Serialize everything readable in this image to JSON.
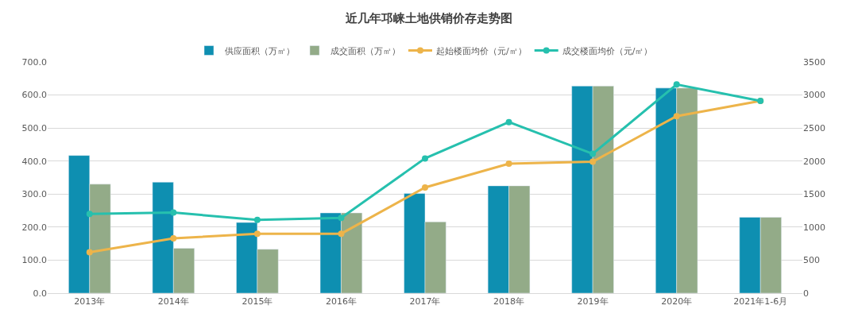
{
  "chart_data": {
    "type": "bar",
    "title": "近几年邛崃土地供销价存走势图",
    "categories": [
      "2013年",
      "2014年",
      "2015年",
      "2016年",
      "2017年",
      "2018年",
      "2019年",
      "2020年",
      "2021年1-6月"
    ],
    "series": [
      {
        "name": "供应面积（万㎡）",
        "color": "#0e8fb1",
        "values": [
          417,
          336,
          214,
          243,
          302,
          325,
          627,
          621,
          230
        ]
      },
      {
        "name": "成交面积（万㎡）",
        "color": "#93ab88",
        "values": [
          330,
          136,
          133,
          243,
          216,
          325,
          627,
          621,
          230
        ]
      },
      {
        "name": "起始楼面均价（元/㎡）",
        "type": "line",
        "axis": "y2",
        "color": "#edb44a",
        "values": [
          620,
          830,
          900,
          900,
          1600,
          1960,
          1990,
          2680,
          2910
        ]
      },
      {
        "name": "成交楼面均价（元/㎡）",
        "type": "line",
        "axis": "y2",
        "color": "#26c0ae",
        "values": [
          1200,
          1220,
          1110,
          1140,
          2040,
          2590,
          2110,
          3160,
          2910
        ]
      }
    ],
    "ylim": [
      0,
      700
    ],
    "yticks": [
      {
        "value": 0,
        "label": "0.0"
      },
      {
        "value": 100,
        "label": "100.0"
      },
      {
        "value": 200,
        "label": "200.0"
      },
      {
        "value": 300,
        "label": "300.0"
      },
      {
        "value": 400,
        "label": "400.0"
      },
      {
        "value": 500,
        "label": "500.0"
      },
      {
        "value": 600,
        "label": "600.0"
      },
      {
        "value": 700,
        "label": "700.0"
      }
    ],
    "y2lim": [
      0,
      3500
    ],
    "y2ticks": [
      0,
      500,
      1000,
      1500,
      2000,
      2500,
      3000,
      3500
    ],
    "grid": "y",
    "legend": "top",
    "marker": "circle",
    "line_style": "solid"
  }
}
